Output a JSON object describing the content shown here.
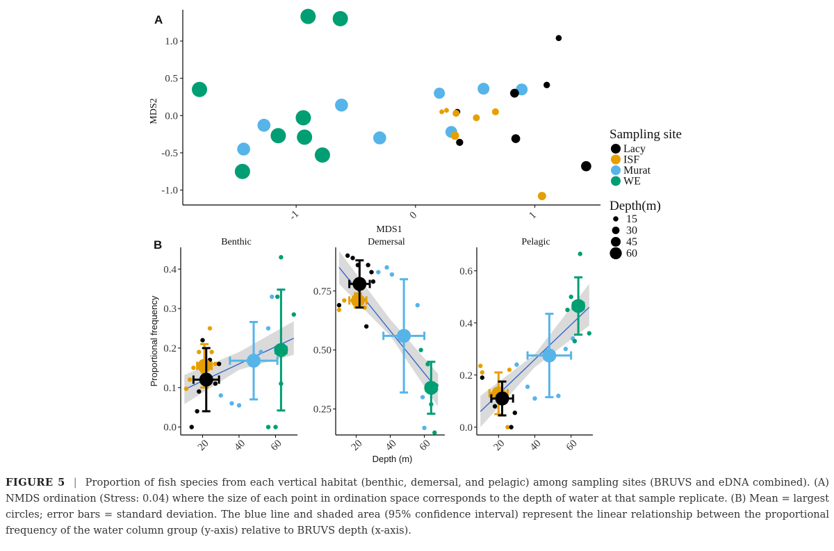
{
  "caption": {
    "label": "FIGURE 5",
    "separator": "|",
    "text": "Proportion of fish species from each vertical habitat (benthic, demersal, and pelagic) among sampling sites (BRUVS and eDNA combined). (A) NMDS ordination (Stress: 0.04) where the size of each point in ordination space corresponds to the depth of water at that sample replicate. (B) Mean = largest circles; error bars = standard deviation. The blue line and shaded area (95% confidence interval) represent the linear relationship between the proportional frequency of the water column group (y-axis) relative to BRUVS depth (x-axis)."
  },
  "colors": {
    "Lacy": "#000000",
    "ISF": "#E69F00",
    "Murat": "#56B4E9",
    "WE": "#009E73",
    "fit_line": "#3366CC",
    "ci_band": "#BBBBBB"
  },
  "legend": {
    "site_title": "Sampling site",
    "sites": [
      "Lacy",
      "ISF",
      "Murat",
      "WE"
    ],
    "depth_title": "Depth(m)",
    "depths": [
      "15",
      "30",
      "45",
      "60"
    ]
  },
  "chart_data": [
    {
      "type": "scatter",
      "panel": "A",
      "xlabel": "MDS1",
      "ylabel": "MDS2",
      "xlim": [
        -1.95,
        1.55
      ],
      "ylim": [
        -1.2,
        1.42
      ],
      "xticks": [
        "-1",
        "0",
        "1"
      ],
      "yticks": [
        "-1.0",
        "-0.5",
        "0.0",
        "0.5",
        "1.0"
      ],
      "grid": false,
      "legend_placement": "right",
      "points": [
        {
          "site": "WE",
          "x": -0.9,
          "y": 1.33,
          "depth": 60
        },
        {
          "site": "WE",
          "x": -0.63,
          "y": 1.3,
          "depth": 60
        },
        {
          "site": "WE",
          "x": -1.81,
          "y": 0.35,
          "depth": 60
        },
        {
          "site": "WE",
          "x": -0.94,
          "y": -0.03,
          "depth": 60
        },
        {
          "site": "WE",
          "x": -1.15,
          "y": -0.27,
          "depth": 60
        },
        {
          "site": "WE",
          "x": -0.93,
          "y": -0.29,
          "depth": 60
        },
        {
          "site": "WE",
          "x": -0.78,
          "y": -0.53,
          "depth": 60
        },
        {
          "site": "WE",
          "x": -1.45,
          "y": -0.75,
          "depth": 60
        },
        {
          "site": "Murat",
          "x": -0.62,
          "y": 0.14,
          "depth": 50
        },
        {
          "site": "Murat",
          "x": -1.27,
          "y": -0.13,
          "depth": 50
        },
        {
          "site": "Murat",
          "x": -1.44,
          "y": -0.45,
          "depth": 50
        },
        {
          "site": "Murat",
          "x": -0.3,
          "y": -0.3,
          "depth": 50
        },
        {
          "site": "Murat",
          "x": 0.2,
          "y": 0.3,
          "depth": 42
        },
        {
          "site": "Murat",
          "x": 0.57,
          "y": 0.36,
          "depth": 45
        },
        {
          "site": "Murat",
          "x": 0.89,
          "y": 0.35,
          "depth": 45
        },
        {
          "site": "Murat",
          "x": 0.3,
          "y": -0.22,
          "depth": 45
        },
        {
          "site": "Lacy",
          "x": 1.2,
          "y": 1.04,
          "depth": 20
        },
        {
          "site": "Lacy",
          "x": 1.1,
          "y": 0.41,
          "depth": 22
        },
        {
          "site": "Lacy",
          "x": 0.83,
          "y": 0.3,
          "depth": 32
        },
        {
          "site": "Lacy",
          "x": 0.84,
          "y": -0.31,
          "depth": 32
        },
        {
          "site": "Lacy",
          "x": 1.43,
          "y": -0.68,
          "depth": 38
        },
        {
          "site": "Lacy",
          "x": 0.37,
          "y": -0.36,
          "depth": 25
        },
        {
          "site": "Lacy",
          "x": 0.35,
          "y": 0.05,
          "depth": 20
        },
        {
          "site": "ISF",
          "x": 0.22,
          "y": 0.05,
          "depth": 15
        },
        {
          "site": "ISF",
          "x": 0.26,
          "y": 0.07,
          "depth": 15
        },
        {
          "site": "ISF",
          "x": 0.34,
          "y": 0.03,
          "depth": 24
        },
        {
          "site": "ISF",
          "x": 0.51,
          "y": -0.03,
          "depth": 24
        },
        {
          "site": "ISF",
          "x": 0.67,
          "y": 0.05,
          "depth": 24
        },
        {
          "site": "ISF",
          "x": 0.33,
          "y": -0.27,
          "depth": 30
        },
        {
          "site": "ISF",
          "x": 1.06,
          "y": -1.08,
          "depth": 30
        }
      ]
    },
    {
      "type": "scatter",
      "panel": "B",
      "facet": "Benthic",
      "xlabel": "",
      "ylabel": "Proportional frequency",
      "xlim": [
        8,
        72
      ],
      "ylim": [
        -0.02,
        0.455
      ],
      "xticks": [
        "20",
        "40",
        "60"
      ],
      "yticks": [
        "0.0",
        "0.1",
        "0.2",
        "0.3",
        "0.4"
      ],
      "fit": {
        "x": [
          10,
          70
        ],
        "y": [
          0.095,
          0.225
        ]
      },
      "ci": {
        "x": [
          10,
          40,
          70
        ],
        "lower": [
          0.058,
          0.145,
          0.183
        ],
        "upper": [
          0.132,
          0.19,
          0.268
        ]
      },
      "means": [
        {
          "site": "ISF",
          "x": 21,
          "y": 0.155,
          "xsd": 4,
          "ysd": 0.055
        },
        {
          "site": "Lacy",
          "x": 22,
          "y": 0.12,
          "xsd": 7,
          "ysd": 0.08
        },
        {
          "site": "Murat",
          "x": 48,
          "y": 0.168,
          "xsd": 13,
          "ysd": 0.098
        },
        {
          "site": "WE",
          "x": 63,
          "y": 0.195,
          "xsd": 3,
          "ysd": 0.153
        }
      ],
      "points": [
        {
          "site": "ISF",
          "x": 13,
          "y": 0.12
        },
        {
          "site": "ISF",
          "x": 15,
          "y": 0.15
        },
        {
          "site": "ISF",
          "x": 18,
          "y": 0.19
        },
        {
          "site": "ISF",
          "x": 20,
          "y": 0.14
        },
        {
          "site": "ISF",
          "x": 24,
          "y": 0.25
        },
        {
          "site": "ISF",
          "x": 25,
          "y": 0.19
        },
        {
          "site": "ISF",
          "x": 27,
          "y": 0.16
        },
        {
          "site": "ISF",
          "x": 11,
          "y": 0.097
        },
        {
          "site": "Lacy",
          "x": 14,
          "y": 0.0
        },
        {
          "site": "Lacy",
          "x": 17,
          "y": 0.04
        },
        {
          "site": "Lacy",
          "x": 20,
          "y": 0.22
        },
        {
          "site": "Lacy",
          "x": 24,
          "y": 0.17
        },
        {
          "site": "Lacy",
          "x": 27,
          "y": 0.11
        },
        {
          "site": "Lacy",
          "x": 29,
          "y": 0.16
        },
        {
          "site": "Lacy",
          "x": 18,
          "y": 0.09
        },
        {
          "site": "Murat",
          "x": 30,
          "y": 0.08
        },
        {
          "site": "Murat",
          "x": 36,
          "y": 0.06
        },
        {
          "site": "Murat",
          "x": 40,
          "y": 0.055
        },
        {
          "site": "Murat",
          "x": 52,
          "y": 0.19
        },
        {
          "site": "Murat",
          "x": 56,
          "y": 0.25
        },
        {
          "site": "Murat",
          "x": 58,
          "y": 0.33
        },
        {
          "site": "WE",
          "x": 56,
          "y": 0.0
        },
        {
          "site": "WE",
          "x": 60,
          "y": 0.0
        },
        {
          "site": "WE",
          "x": 61,
          "y": 0.33
        },
        {
          "site": "WE",
          "x": 63,
          "y": 0.43
        },
        {
          "site": "WE",
          "x": 63,
          "y": 0.11
        },
        {
          "site": "WE",
          "x": 70,
          "y": 0.285
        }
      ]
    },
    {
      "type": "scatter",
      "panel": "B",
      "facet": "Demersal",
      "xlabel": "Depth (m)",
      "ylabel": "",
      "xlim": [
        8,
        72
      ],
      "ylim": [
        0.14,
        0.935
      ],
      "xticks": [
        "20",
        "40",
        "60"
      ],
      "yticks": [
        "0.25",
        "0.50",
        "0.75"
      ],
      "fit": {
        "x": [
          10,
          68
        ],
        "y": [
          0.85,
          0.33
        ]
      },
      "ci": {
        "x": [
          10,
          40,
          68
        ],
        "lower": [
          0.78,
          0.56,
          0.26
        ],
        "upper": [
          0.92,
          0.63,
          0.4
        ]
      },
      "means": [
        {
          "site": "ISF",
          "x": 21,
          "y": 0.71,
          "xsd": 5,
          "ysd": 0.03
        },
        {
          "site": "Lacy",
          "x": 22,
          "y": 0.78,
          "xsd": 6,
          "ysd": 0.1
        },
        {
          "site": "Murat",
          "x": 48,
          "y": 0.56,
          "xsd": 12,
          "ysd": 0.24
        },
        {
          "site": "WE",
          "x": 64,
          "y": 0.34,
          "xsd": 3,
          "ysd": 0.11
        }
      ],
      "points": [
        {
          "site": "Lacy",
          "x": 15,
          "y": 0.9
        },
        {
          "site": "Lacy",
          "x": 18,
          "y": 0.89
        },
        {
          "site": "Lacy",
          "x": 21,
          "y": 0.86
        },
        {
          "site": "Lacy",
          "x": 27,
          "y": 0.86
        },
        {
          "site": "Lacy",
          "x": 29,
          "y": 0.83
        },
        {
          "site": "Lacy",
          "x": 30,
          "y": 0.79
        },
        {
          "site": "Lacy",
          "x": 20,
          "y": 0.72
        },
        {
          "site": "Lacy",
          "x": 10,
          "y": 0.69
        },
        {
          "site": "Lacy",
          "x": 26,
          "y": 0.6
        },
        {
          "site": "ISF",
          "x": 10,
          "y": 0.67
        },
        {
          "site": "ISF",
          "x": 13,
          "y": 0.71
        },
        {
          "site": "ISF",
          "x": 19,
          "y": 0.7
        },
        {
          "site": "ISF",
          "x": 23,
          "y": 0.71
        },
        {
          "site": "ISF",
          "x": 25,
          "y": 0.68
        },
        {
          "site": "Murat",
          "x": 33,
          "y": 0.83
        },
        {
          "site": "Murat",
          "x": 38,
          "y": 0.85
        },
        {
          "site": "Murat",
          "x": 41,
          "y": 0.82
        },
        {
          "site": "Murat",
          "x": 56,
          "y": 0.69
        },
        {
          "site": "Murat",
          "x": 59,
          "y": 0.3
        },
        {
          "site": "Murat",
          "x": 60,
          "y": 0.17
        },
        {
          "site": "WE",
          "x": 58,
          "y": 0.5
        },
        {
          "site": "WE",
          "x": 62,
          "y": 0.44
        },
        {
          "site": "WE",
          "x": 64,
          "y": 0.27
        },
        {
          "site": "WE",
          "x": 67,
          "y": 0.35
        },
        {
          "site": "WE",
          "x": 66,
          "y": 0.15
        }
      ]
    },
    {
      "type": "scatter",
      "panel": "B",
      "facet": "Pelagic",
      "xlabel": "",
      "ylabel": "",
      "xlim": [
        8,
        72
      ],
      "ylim": [
        -0.03,
        0.69
      ],
      "xticks": [
        "20",
        "40",
        "60"
      ],
      "yticks": [
        "0.0",
        "0.2",
        "0.4",
        "0.6"
      ],
      "fit": {
        "x": [
          10,
          70
        ],
        "y": [
          0.06,
          0.46
        ]
      },
      "ci": {
        "x": [
          10,
          40,
          70
        ],
        "lower": [
          0.0,
          0.23,
          0.39
        ],
        "upper": [
          0.12,
          0.28,
          0.55
        ]
      },
      "means": [
        {
          "site": "ISF",
          "x": 20,
          "y": 0.13,
          "xsd": 5,
          "ysd": 0.08
        },
        {
          "site": "Lacy",
          "x": 22,
          "y": 0.11,
          "xsd": 6,
          "ysd": 0.065
        },
        {
          "site": "Murat",
          "x": 48,
          "y": 0.275,
          "xsd": 12,
          "ysd": 0.16
        },
        {
          "site": "WE",
          "x": 64,
          "y": 0.465,
          "xsd": 3,
          "ysd": 0.11
        }
      ],
      "points": [
        {
          "site": "ISF",
          "x": 10,
          "y": 0.235
        },
        {
          "site": "ISF",
          "x": 11,
          "y": 0.21
        },
        {
          "site": "ISF",
          "x": 22,
          "y": 0.09
        },
        {
          "site": "ISF",
          "x": 25,
          "y": 0.0
        },
        {
          "site": "ISF",
          "x": 26,
          "y": 0.22
        },
        {
          "site": "Lacy",
          "x": 11,
          "y": 0.19
        },
        {
          "site": "Lacy",
          "x": 18,
          "y": 0.08
        },
        {
          "site": "Lacy",
          "x": 27,
          "y": 0.0
        },
        {
          "site": "Lacy",
          "x": 29,
          "y": 0.055
        },
        {
          "site": "Lacy",
          "x": 23,
          "y": 0.13
        },
        {
          "site": "Murat",
          "x": 30,
          "y": 0.24
        },
        {
          "site": "Murat",
          "x": 36,
          "y": 0.155
        },
        {
          "site": "Murat",
          "x": 40,
          "y": 0.11
        },
        {
          "site": "Murat",
          "x": 53,
          "y": 0.12
        },
        {
          "site": "Murat",
          "x": 57,
          "y": 0.3
        },
        {
          "site": "Murat",
          "x": 61,
          "y": 0.34
        },
        {
          "site": "WE",
          "x": 60,
          "y": 0.5
        },
        {
          "site": "WE",
          "x": 62,
          "y": 0.33
        },
        {
          "site": "WE",
          "x": 65,
          "y": 0.665
        },
        {
          "site": "WE",
          "x": 70,
          "y": 0.36
        },
        {
          "site": "WE",
          "x": 58,
          "y": 0.45
        }
      ]
    }
  ]
}
